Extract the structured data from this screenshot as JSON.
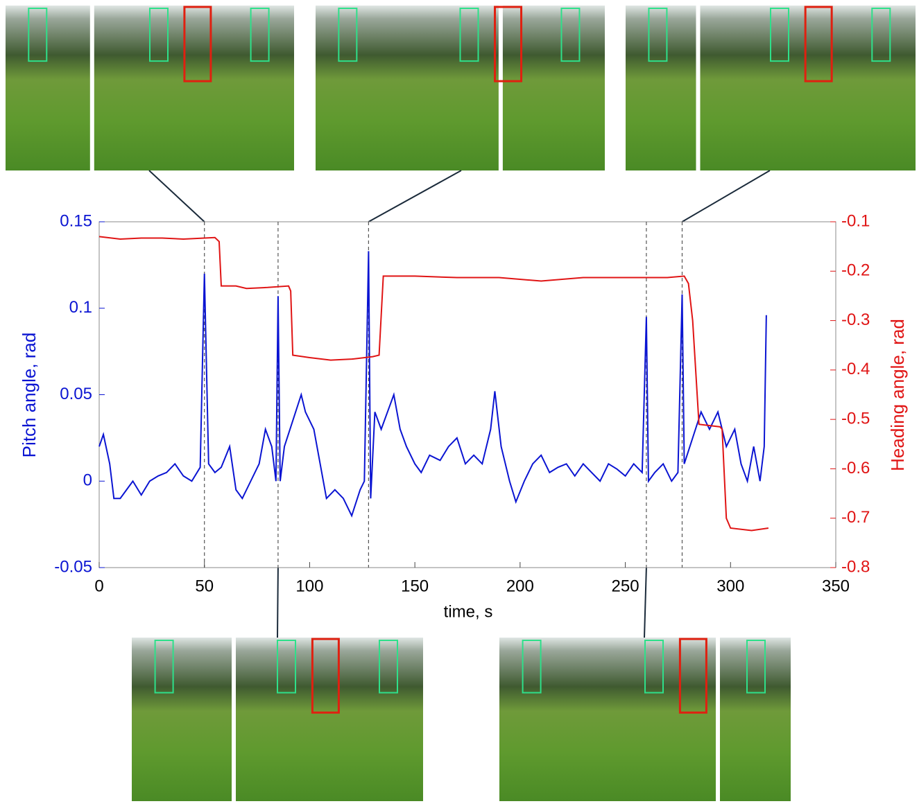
{
  "chart_data": {
    "type": "line",
    "xlabel": "time, s",
    "ylabel": "Pitch angle, rad",
    "y2label": "Heading angle, rad",
    "xlim": [
      0,
      350
    ],
    "xticks": [
      0,
      50,
      100,
      150,
      200,
      250,
      300,
      350
    ],
    "ylim": [
      -0.05,
      0.15
    ],
    "yticks": [
      -0.05,
      0,
      0.05,
      0.1,
      0.15
    ],
    "y2lim": [
      -0.8,
      -0.1
    ],
    "y2ticks": [
      -0.8,
      -0.7,
      -0.6,
      -0.5,
      -0.4,
      -0.3,
      -0.2,
      -0.1
    ],
    "markers": [
      50,
      85,
      128,
      260,
      277
    ],
    "series": [
      {
        "color": "#0a14d2",
        "x": [
          0,
          2,
          5,
          7,
          10,
          13,
          16,
          20,
          24,
          28,
          32,
          36,
          40,
          44,
          48,
          50,
          52,
          55,
          58,
          62,
          65,
          68,
          72,
          76,
          79,
          82,
          84,
          85,
          86,
          88,
          92,
          96,
          98,
          102,
          105,
          108,
          112,
          116,
          120,
          124,
          126,
          128,
          129,
          131,
          134,
          137,
          140,
          143,
          146,
          150,
          153,
          157,
          162,
          166,
          170,
          174,
          178,
          182,
          186,
          188,
          191,
          195,
          198,
          202,
          206,
          210,
          214,
          218,
          222,
          226,
          230,
          234,
          238,
          242,
          246,
          250,
          254,
          258,
          260,
          261,
          264,
          268,
          272,
          275,
          277,
          278,
          282,
          286,
          290,
          294,
          298,
          302,
          305,
          308,
          311,
          314,
          316,
          317
        ],
        "values": [
          0.02,
          0.027,
          0.01,
          -0.01,
          -0.01,
          -0.005,
          0.0,
          -0.008,
          0.0,
          0.003,
          0.005,
          0.01,
          0.003,
          0.0,
          0.008,
          0.12,
          0.01,
          0.005,
          0.008,
          0.02,
          -0.005,
          -0.01,
          0.0,
          0.01,
          0.03,
          0.02,
          0.0,
          0.107,
          0.0,
          0.02,
          0.035,
          0.05,
          0.04,
          0.03,
          0.01,
          -0.01,
          -0.005,
          -0.01,
          -0.02,
          -0.005,
          0.0,
          0.133,
          -0.01,
          0.04,
          0.03,
          0.04,
          0.05,
          0.03,
          0.02,
          0.01,
          0.005,
          0.015,
          0.012,
          0.02,
          0.025,
          0.01,
          0.015,
          0.01,
          0.03,
          0.052,
          0.02,
          0.0,
          -0.012,
          0.0,
          0.01,
          0.015,
          0.005,
          0.008,
          0.01,
          0.003,
          0.01,
          0.005,
          0.0,
          0.01,
          0.007,
          0.003,
          0.01,
          0.005,
          0.095,
          0.0,
          0.005,
          0.01,
          0.0,
          0.005,
          0.108,
          0.01,
          0.025,
          0.04,
          0.03,
          0.04,
          0.02,
          0.03,
          0.01,
          0.0,
          0.02,
          0.0,
          0.02,
          0.096
        ]
      },
      {
        "color": "#e01414",
        "axis": "y2",
        "x": [
          0,
          10,
          20,
          30,
          40,
          50,
          55,
          57,
          58,
          65,
          70,
          80,
          90,
          91,
          92,
          100,
          110,
          120,
          130,
          133,
          135,
          150,
          170,
          190,
          210,
          230,
          250,
          270,
          278,
          280,
          282,
          285,
          295,
          296,
          298,
          300,
          310,
          318
        ],
        "values": [
          -0.13,
          -0.135,
          -0.133,
          -0.133,
          -0.135,
          -0.133,
          -0.132,
          -0.14,
          -0.23,
          -0.23,
          -0.235,
          -0.233,
          -0.23,
          -0.24,
          -0.37,
          -0.375,
          -0.38,
          -0.378,
          -0.373,
          -0.37,
          -0.21,
          -0.21,
          -0.213,
          -0.213,
          -0.22,
          -0.213,
          -0.213,
          -0.213,
          -0.21,
          -0.225,
          -0.3,
          -0.51,
          -0.515,
          -0.52,
          -0.7,
          -0.72,
          -0.725,
          -0.72
        ]
      }
    ]
  }
}
